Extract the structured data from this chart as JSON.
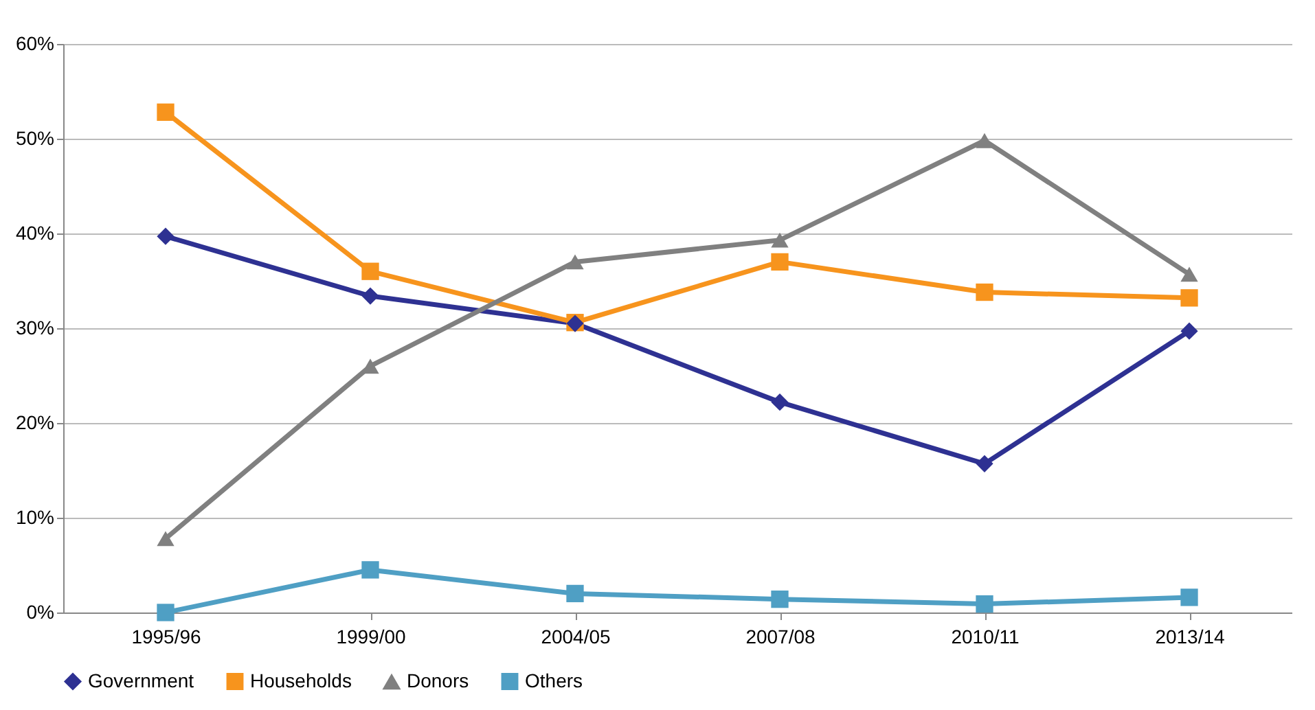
{
  "chart_data": {
    "type": "line",
    "categories": [
      "1995/96",
      "1999/00",
      "2004/05",
      "2007/08",
      "2010/11",
      "2013/14"
    ],
    "series": [
      {
        "name": "Government",
        "color": "#2e3192",
        "marker": "diamond",
        "values": [
          39.7,
          33.4,
          30.5,
          22.2,
          15.7,
          29.7
        ]
      },
      {
        "name": "Households",
        "color": "#f7941d",
        "marker": "square",
        "values": [
          52.8,
          36,
          30.6,
          37,
          33.8,
          33.2
        ]
      },
      {
        "name": "Donors",
        "color": "#808080",
        "marker": "triangle",
        "values": [
          7.8,
          26,
          37,
          39.3,
          49.8,
          35.7
        ]
      },
      {
        "name": "Others",
        "color": "#4f9fc4",
        "marker": "square",
        "values": [
          0,
          4.5,
          2,
          1.4,
          0.9,
          1.6
        ]
      }
    ],
    "ylim": [
      0,
      60
    ],
    "yticks": [
      {
        "value": 0,
        "label": "0%"
      },
      {
        "value": 10,
        "label": "10%"
      },
      {
        "value": 20,
        "label": "20%"
      },
      {
        "value": 30,
        "label": "30%"
      },
      {
        "value": 40,
        "label": "40%"
      },
      {
        "value": 50,
        "label": "50%"
      },
      {
        "value": 60,
        "label": "60%"
      }
    ],
    "grid": "y",
    "legend": "bottom",
    "line_style": "solid"
  }
}
